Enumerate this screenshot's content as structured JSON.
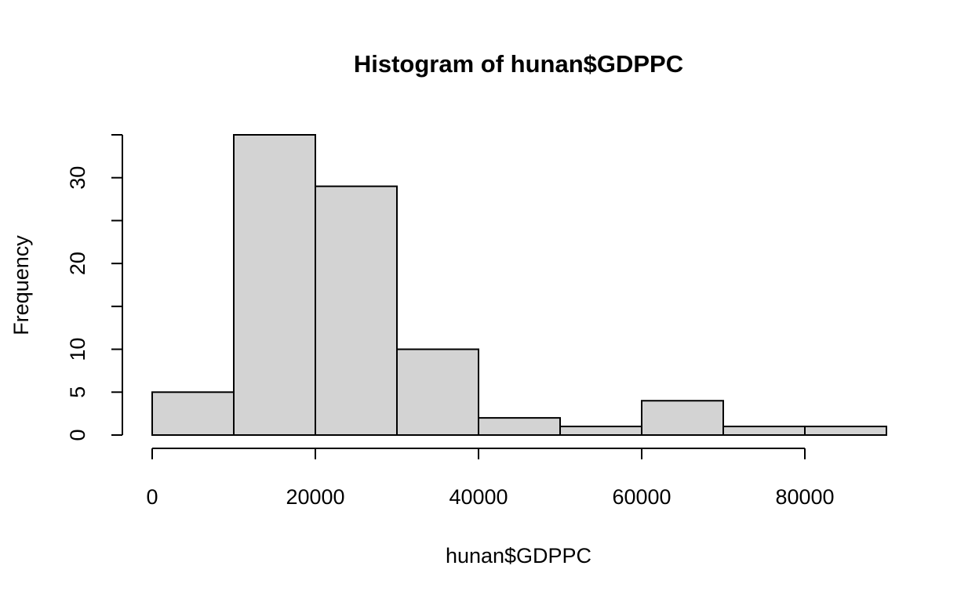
{
  "chart_data": {
    "type": "bar",
    "title": "Histogram of hunan$GDPPC",
    "xlabel": "hunan$GDPPC",
    "ylabel": "Frequency",
    "bins": [
      {
        "from": 0,
        "to": 10000,
        "count": 5
      },
      {
        "from": 10000,
        "to": 20000,
        "count": 35
      },
      {
        "from": 20000,
        "to": 30000,
        "count": 29
      },
      {
        "from": 30000,
        "to": 40000,
        "count": 10
      },
      {
        "from": 40000,
        "to": 50000,
        "count": 2
      },
      {
        "from": 50000,
        "to": 60000,
        "count": 1
      },
      {
        "from": 60000,
        "to": 70000,
        "count": 4
      },
      {
        "from": 70000,
        "to": 80000,
        "count": 1
      },
      {
        "from": 80000,
        "to": 90000,
        "count": 1
      }
    ],
    "xlim": [
      0,
      90000
    ],
    "ylim": [
      0,
      35
    ],
    "x_ticks": [
      0,
      20000,
      40000,
      60000,
      80000
    ],
    "x_tick_labels": [
      "0",
      "20000",
      "40000",
      "60000",
      "80000"
    ],
    "y_ticks": [
      0,
      5,
      10,
      15,
      20,
      25,
      30,
      35
    ],
    "y_tick_labels": [
      "0",
      "5",
      "10",
      "",
      "20",
      "",
      "30",
      ""
    ],
    "bar_color": "#d3d3d3",
    "edge_color": "#000000",
    "grid": false
  }
}
